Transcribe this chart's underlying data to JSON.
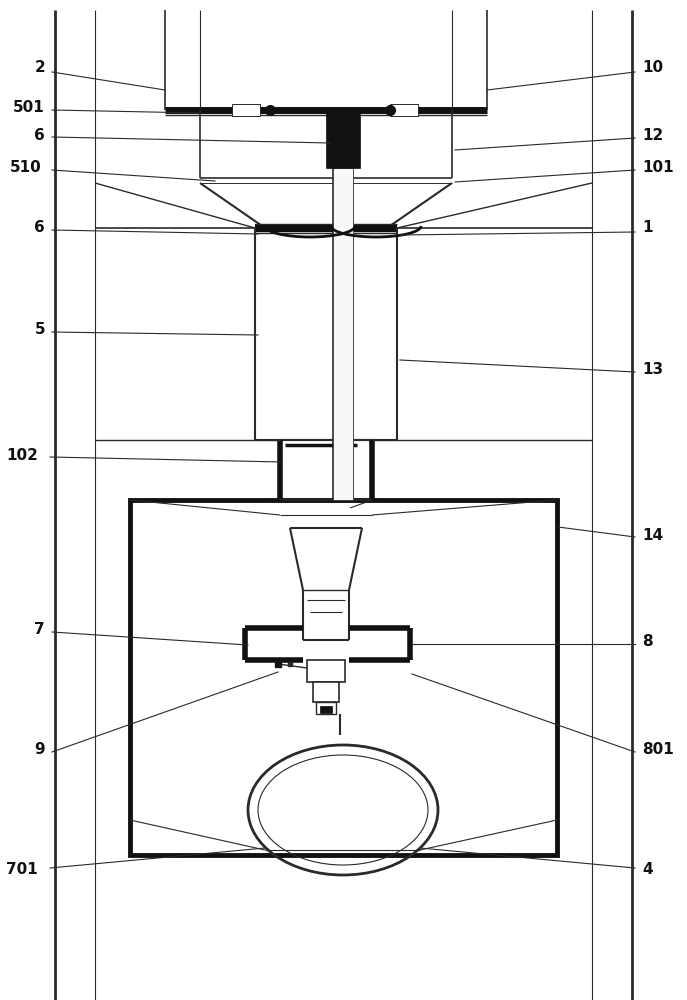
{
  "bg": "#ffffff",
  "lc": "#2a2a2a",
  "dc": "#111111",
  "figsize": [
    6.87,
    10.0
  ],
  "dpi": 100
}
